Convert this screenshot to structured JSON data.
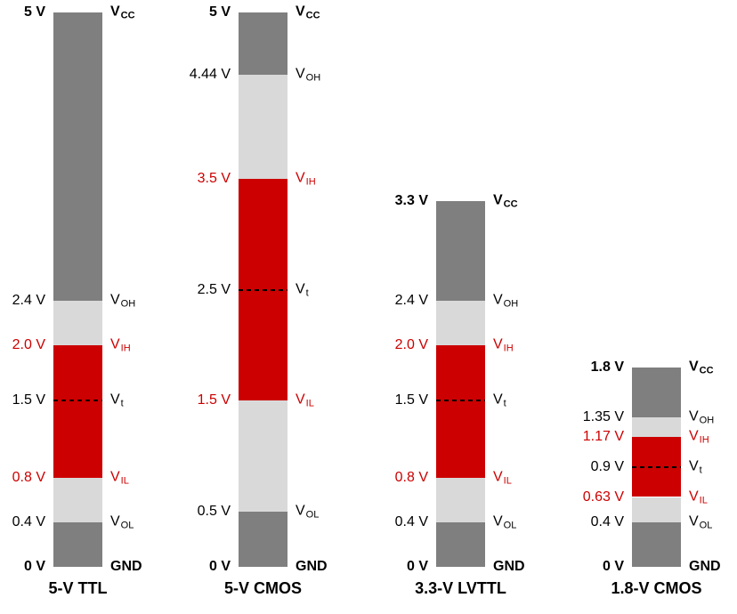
{
  "colors": {
    "dark_gray": "#7f7f7f",
    "light_gray": "#d9d9d9",
    "red": "#cc0000",
    "text": "#000000",
    "background": "#ffffff"
  },
  "bars": [
    {
      "id": "5v-ttl",
      "caption": "5-V TTL",
      "vcc": 5,
      "vt": 1.5,
      "levels": [
        {
          "voltage": 5,
          "voltage_label": "5 V",
          "name": "V",
          "sub": "CC",
          "bold": true,
          "red": false
        },
        {
          "voltage": 2.4,
          "voltage_label": "2.4 V",
          "name": "V",
          "sub": "OH",
          "bold": false,
          "red": false
        },
        {
          "voltage": 2.0,
          "voltage_label": "2.0 V",
          "name": "V",
          "sub": "IH",
          "bold": false,
          "red": true
        },
        {
          "voltage": 1.5,
          "voltage_label": "1.5 V",
          "name": "V",
          "sub": "t",
          "bold": false,
          "red": false
        },
        {
          "voltage": 0.8,
          "voltage_label": "0.8 V",
          "name": "V",
          "sub": "IL",
          "bold": false,
          "red": true
        },
        {
          "voltage": 0.4,
          "voltage_label": "0.4 V",
          "name": "V",
          "sub": "OL",
          "bold": false,
          "red": false
        },
        {
          "voltage": 0,
          "voltage_label": "0 V",
          "name": "GND",
          "sub": "",
          "bold": true,
          "red": false
        }
      ],
      "segments": [
        {
          "from": 5,
          "to": 2.4,
          "color": "dark_gray"
        },
        {
          "from": 2.4,
          "to": 2.0,
          "color": "light_gray"
        },
        {
          "from": 2.0,
          "to": 0.8,
          "color": "red"
        },
        {
          "from": 0.8,
          "to": 0.4,
          "color": "light_gray"
        },
        {
          "from": 0.4,
          "to": 0,
          "color": "dark_gray"
        }
      ]
    },
    {
      "id": "5v-cmos",
      "caption": "5-V CMOS",
      "vcc": 5,
      "vt": 2.5,
      "levels": [
        {
          "voltage": 5,
          "voltage_label": "5 V",
          "name": "V",
          "sub": "CC",
          "bold": true,
          "red": false
        },
        {
          "voltage": 4.44,
          "voltage_label": "4.44 V",
          "name": "V",
          "sub": "OH",
          "bold": false,
          "red": false
        },
        {
          "voltage": 3.5,
          "voltage_label": "3.5 V",
          "name": "V",
          "sub": "IH",
          "bold": false,
          "red": true
        },
        {
          "voltage": 2.5,
          "voltage_label": "2.5 V",
          "name": "V",
          "sub": "t",
          "bold": false,
          "red": false
        },
        {
          "voltage": 1.5,
          "voltage_label": "1.5 V",
          "name": "V",
          "sub": "IL",
          "bold": false,
          "red": true
        },
        {
          "voltage": 0.5,
          "voltage_label": "0.5 V",
          "name": "V",
          "sub": "OL",
          "bold": false,
          "red": false
        },
        {
          "voltage": 0,
          "voltage_label": "0 V",
          "name": "GND",
          "sub": "",
          "bold": true,
          "red": false
        }
      ],
      "segments": [
        {
          "from": 5,
          "to": 4.44,
          "color": "dark_gray"
        },
        {
          "from": 4.44,
          "to": 3.5,
          "color": "light_gray"
        },
        {
          "from": 3.5,
          "to": 1.5,
          "color": "red"
        },
        {
          "from": 1.5,
          "to": 0.5,
          "color": "light_gray"
        },
        {
          "from": 0.5,
          "to": 0,
          "color": "dark_gray"
        }
      ]
    },
    {
      "id": "3.3v-lvttl",
      "caption": "3.3-V LVTTL",
      "vcc": 3.3,
      "vt": 1.5,
      "levels": [
        {
          "voltage": 3.3,
          "voltage_label": "3.3 V",
          "name": "V",
          "sub": "CC",
          "bold": true,
          "red": false
        },
        {
          "voltage": 2.4,
          "voltage_label": "2.4 V",
          "name": "V",
          "sub": "OH",
          "bold": false,
          "red": false
        },
        {
          "voltage": 2.0,
          "voltage_label": "2.0 V",
          "name": "V",
          "sub": "IH",
          "bold": false,
          "red": true
        },
        {
          "voltage": 1.5,
          "voltage_label": "1.5 V",
          "name": "V",
          "sub": "t",
          "bold": false,
          "red": false
        },
        {
          "voltage": 0.8,
          "voltage_label": "0.8 V",
          "name": "V",
          "sub": "IL",
          "bold": false,
          "red": true
        },
        {
          "voltage": 0.4,
          "voltage_label": "0.4 V",
          "name": "V",
          "sub": "OL",
          "bold": false,
          "red": false
        },
        {
          "voltage": 0,
          "voltage_label": "0 V",
          "name": "GND",
          "sub": "",
          "bold": true,
          "red": false
        }
      ],
      "segments": [
        {
          "from": 3.3,
          "to": 2.4,
          "color": "dark_gray"
        },
        {
          "from": 2.4,
          "to": 2.0,
          "color": "light_gray"
        },
        {
          "from": 2.0,
          "to": 0.8,
          "color": "red"
        },
        {
          "from": 0.8,
          "to": 0.4,
          "color": "light_gray"
        },
        {
          "from": 0.4,
          "to": 0,
          "color": "dark_gray"
        }
      ]
    },
    {
      "id": "1.8v-cmos",
      "caption": "1.8-V CMOS",
      "vcc": 1.8,
      "vt": 0.9,
      "levels": [
        {
          "voltage": 1.8,
          "voltage_label": "1.8 V",
          "name": "V",
          "sub": "CC",
          "bold": true,
          "red": false
        },
        {
          "voltage": 1.35,
          "voltage_label": "1.35 V",
          "name": "V",
          "sub": "OH",
          "bold": false,
          "red": false
        },
        {
          "voltage": 1.17,
          "voltage_label": "1.17 V",
          "name": "V",
          "sub": "IH",
          "bold": false,
          "red": true
        },
        {
          "voltage": 0.9,
          "voltage_label": "0.9 V",
          "name": "V",
          "sub": "t",
          "bold": false,
          "red": false
        },
        {
          "voltage": 0.63,
          "voltage_label": "0.63 V",
          "name": "V",
          "sub": "IL",
          "bold": false,
          "red": true
        },
        {
          "voltage": 0.4,
          "voltage_label": "0.4 V",
          "name": "V",
          "sub": "OL",
          "bold": false,
          "red": false
        },
        {
          "voltage": 0,
          "voltage_label": "0 V",
          "name": "GND",
          "sub": "",
          "bold": true,
          "red": false
        }
      ],
      "segments": [
        {
          "from": 1.8,
          "to": 1.35,
          "color": "dark_gray"
        },
        {
          "from": 1.35,
          "to": 1.17,
          "color": "light_gray"
        },
        {
          "from": 1.17,
          "to": 0.63,
          "color": "red"
        },
        {
          "from": 0.63,
          "to": 0.4,
          "color": "light_gray"
        },
        {
          "from": 0.4,
          "to": 0,
          "color": "dark_gray"
        }
      ]
    }
  ]
}
